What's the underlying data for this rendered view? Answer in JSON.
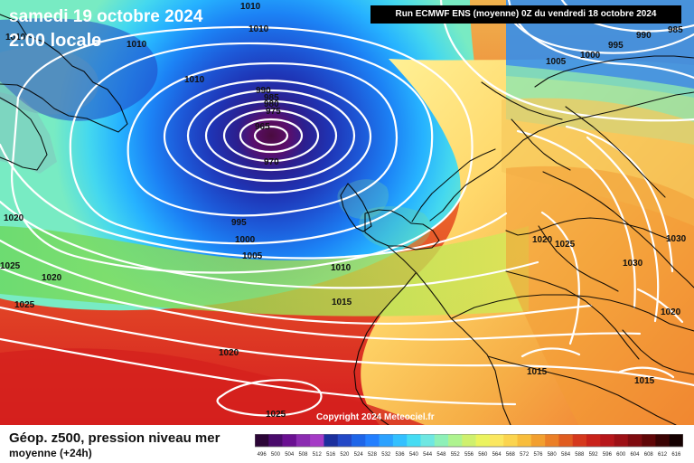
{
  "header": {
    "date": "samedi 19 octobre 2024",
    "time": "2:00 locale",
    "run": "Run ECMWF ENS (moyenne) 0Z du vendredi 18 octobre 2024"
  },
  "footer": {
    "copyright": "Copyright 2024 Meteociel.fr",
    "title": "Géop. z500, pression niveau mer",
    "subtitle": "moyenne  (+24h)"
  },
  "isobar_labels": [
    "1010",
    "1010",
    "1010",
    "1010",
    "1010",
    "990",
    "985",
    "980",
    "975",
    "965",
    "970",
    "995",
    "1000",
    "1005",
    "1010",
    "1015",
    "1020",
    "1025",
    "1020",
    "1025",
    "1020",
    "1030",
    "1030",
    "1020",
    "1025",
    "1015",
    "1015",
    "1005",
    "1000",
    "995",
    "990",
    "985",
    "1020",
    "1025"
  ],
  "colorbar": {
    "ticks": [
      "496",
      "500",
      "504",
      "508",
      "512",
      "516",
      "520",
      "524",
      "528",
      "532",
      "536",
      "540",
      "544",
      "548",
      "552",
      "556",
      "560",
      "564",
      "568",
      "572",
      "576",
      "580",
      "584",
      "588",
      "592",
      "596",
      "600",
      "604",
      "608",
      "612",
      "616"
    ],
    "colors": [
      "#2b0536",
      "#4a0b6b",
      "#6a1091",
      "#8b2bb1",
      "#a53bc6",
      "#1c2f9d",
      "#2348c6",
      "#1e65e8",
      "#237fff",
      "#2ca2ff",
      "#33c0ff",
      "#46dcf3",
      "#6ee7e2",
      "#8ef0b8",
      "#aef38f",
      "#cff06e",
      "#ebf35f",
      "#fbe760",
      "#fbd44f",
      "#f8bd3c",
      "#f29f2f",
      "#eb7f27",
      "#e05c20",
      "#d5381d",
      "#c9221a",
      "#b7161a",
      "#9d1015",
      "#7f0b0f",
      "#600607",
      "#3a0303",
      "#150101"
    ]
  }
}
